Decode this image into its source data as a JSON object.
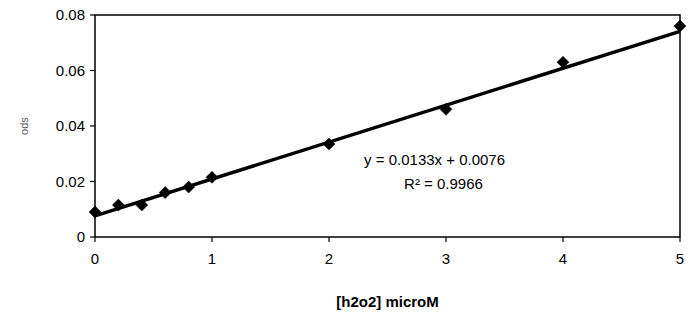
{
  "chart_data": {
    "type": "scatter",
    "x_label": "[h2o2] microM",
    "y_label": "ods",
    "x": [
      0,
      0.2,
      0.4,
      0.6,
      0.8,
      1,
      2,
      3,
      4,
      5
    ],
    "values": [
      0.009,
      0.0115,
      0.0115,
      0.016,
      0.018,
      0.0215,
      0.0335,
      0.046,
      0.063,
      0.076
    ],
    "color": "#000000",
    "marker": "diamond",
    "trendline": {
      "slope": 0.0133,
      "intercept": 0.0076
    },
    "annotations": [
      "y = 0.0133x + 0.0076",
      "R² = 0.9966"
    ],
    "xlim": [
      0,
      5
    ],
    "xticks": [
      0,
      1,
      2,
      3,
      4,
      5
    ],
    "ylim": [
      0,
      0.08
    ],
    "yticks": [
      0,
      0.02,
      0.04,
      0.06,
      0.08
    ],
    "grid": false
  }
}
